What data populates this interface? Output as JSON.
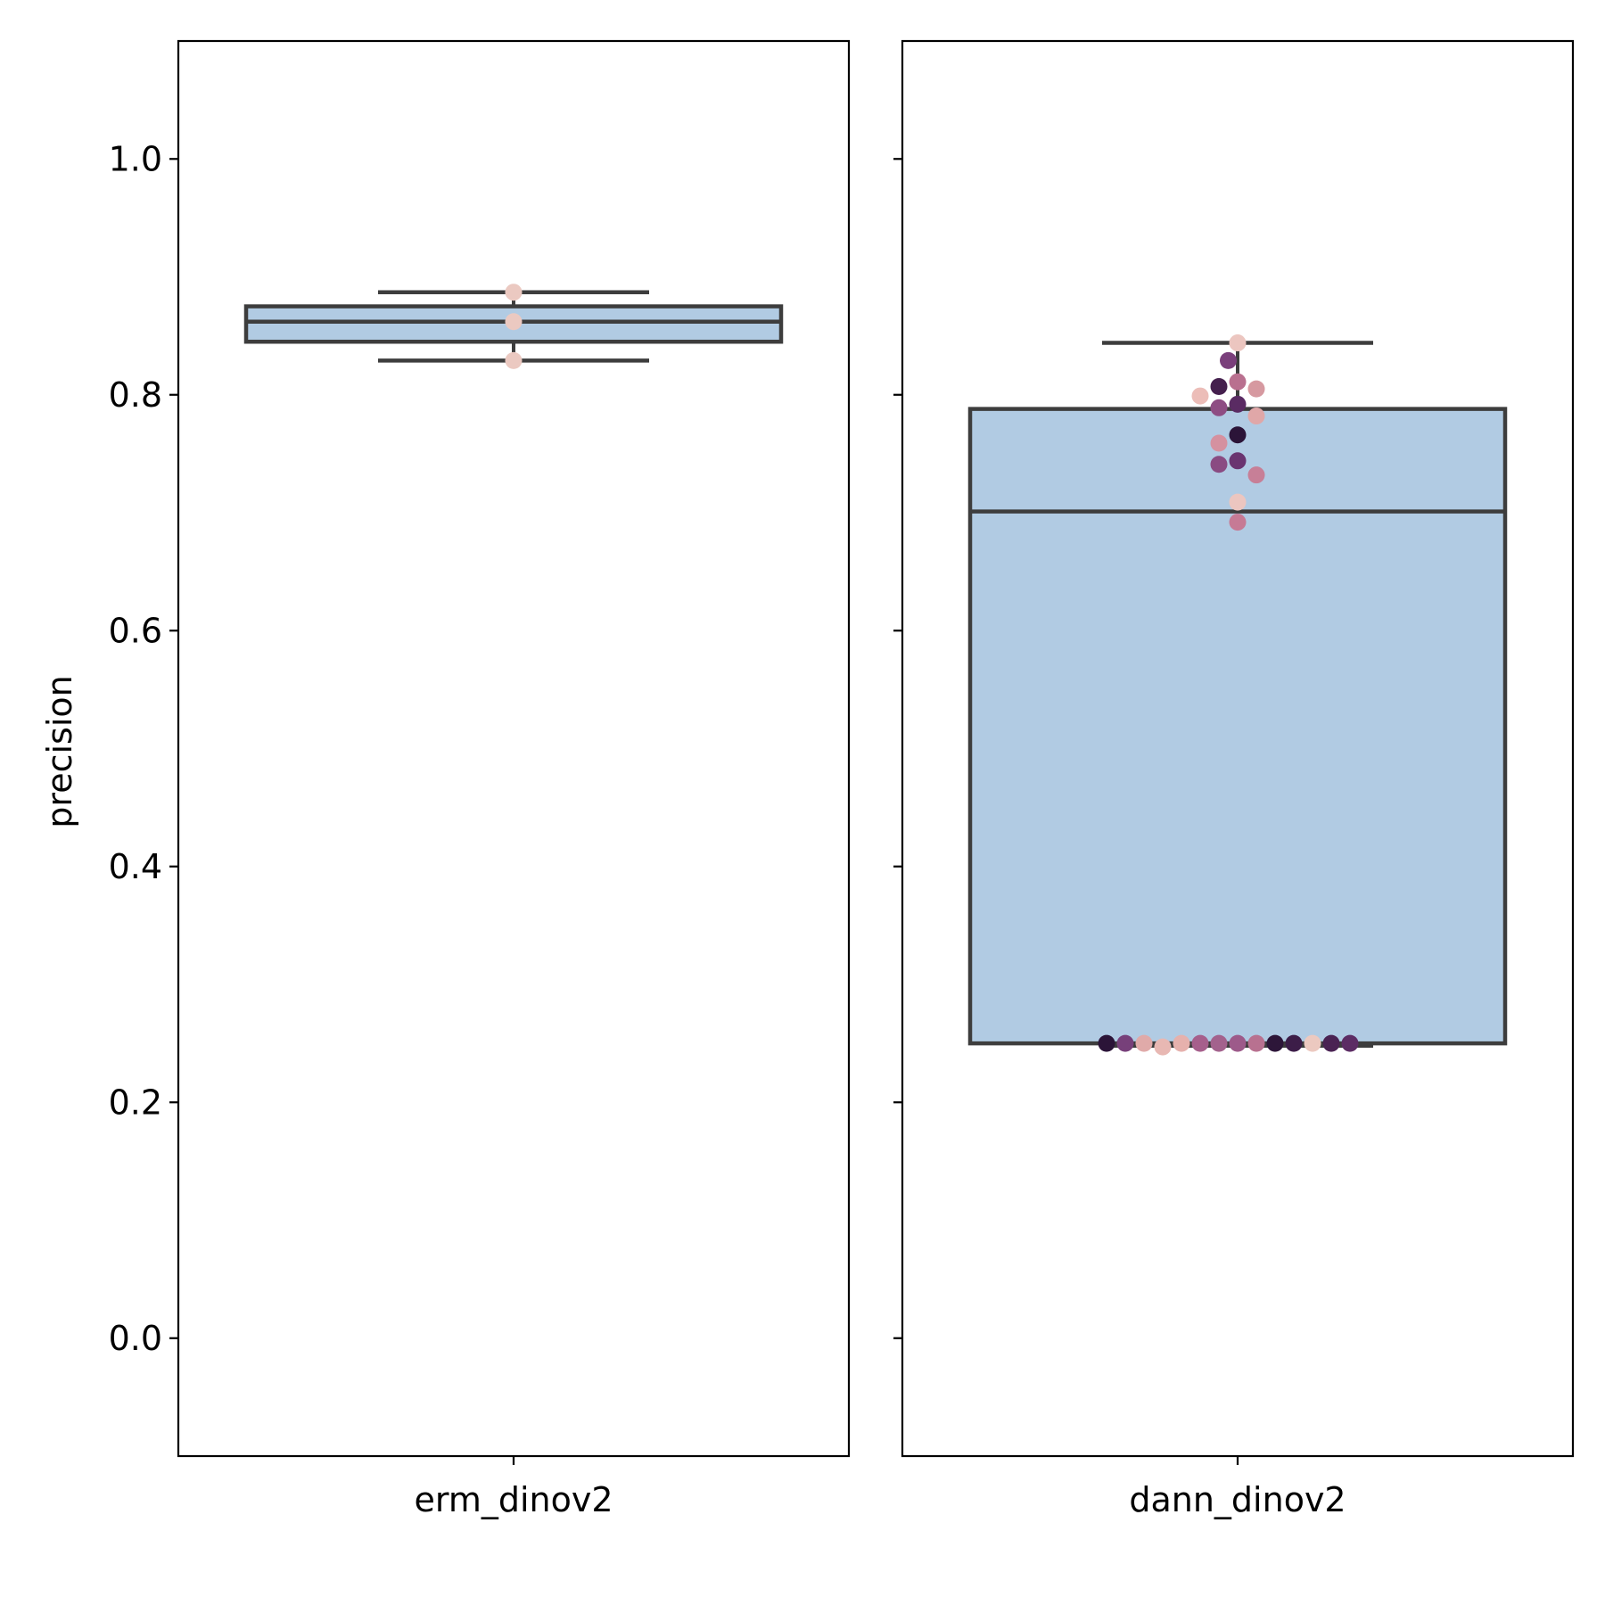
{
  "chart_data": {
    "type": "box",
    "ylabel": "precision",
    "ylim": [
      -0.1,
      1.1
    ],
    "yticks": [
      0.0,
      0.2,
      0.4,
      0.6,
      0.8,
      1.0
    ],
    "ytick_labels": [
      "0.0",
      "0.2",
      "0.4",
      "0.6",
      "0.8",
      "1.0"
    ],
    "sharey": true,
    "grid": false,
    "box_color": "#b1cbe3",
    "line_color": "#3d3d3d",
    "panels": [
      {
        "category": "erm_dinov2",
        "box": {
          "whisker_low": 0.829,
          "q1": 0.845,
          "median": 0.862,
          "q3": 0.875,
          "whisker_high": 0.887
        },
        "points": [
          {
            "y": 0.887,
            "color": "#ebc9c1"
          },
          {
            "y": 0.862,
            "color": "#ebc9c1"
          },
          {
            "y": 0.829,
            "color": "#ebc9c1"
          }
        ]
      },
      {
        "category": "dann_dinov2",
        "box": {
          "whisker_low": 0.248,
          "q1": 0.25,
          "median": 0.701,
          "q3": 0.788,
          "whisker_high": 0.844
        },
        "points": [
          {
            "y": 0.844,
            "color": "#ecc6c0"
          },
          {
            "y": 0.829,
            "color": "#7a3f7b"
          },
          {
            "y": 0.811,
            "color": "#b9708f"
          },
          {
            "y": 0.807,
            "color": "#45204e"
          },
          {
            "y": 0.805,
            "color": "#d699a0"
          },
          {
            "y": 0.799,
            "color": "#ecbdb8"
          },
          {
            "y": 0.792,
            "color": "#5a2b63"
          },
          {
            "y": 0.789,
            "color": "#8e4d83"
          },
          {
            "y": 0.782,
            "color": "#e0a7a8"
          },
          {
            "y": 0.766,
            "color": "#2b1438"
          },
          {
            "y": 0.759,
            "color": "#d591a0"
          },
          {
            "y": 0.744,
            "color": "#6a3470"
          },
          {
            "y": 0.741,
            "color": "#8a4b82"
          },
          {
            "y": 0.732,
            "color": "#c77f97"
          },
          {
            "y": 0.709,
            "color": "#ecc6c0"
          },
          {
            "y": 0.692,
            "color": "#c67a95"
          },
          {
            "y": 0.25,
            "color": "#9d5a8a"
          },
          {
            "y": 0.25,
            "color": "#a3628d"
          },
          {
            "y": 0.25,
            "color": "#b87190"
          },
          {
            "y": 0.25,
            "color": "#a65f8c"
          },
          {
            "y": 0.25,
            "color": "#2d1639"
          },
          {
            "y": 0.25,
            "color": "#e6b1ad"
          },
          {
            "y": 0.25,
            "color": "#3c1d48"
          },
          {
            "y": 0.247,
            "color": "#e8b8b3"
          },
          {
            "y": 0.25,
            "color": "#ecc9c0"
          },
          {
            "y": 0.25,
            "color": "#e0aaa9"
          },
          {
            "y": 0.25,
            "color": "#4a2253"
          },
          {
            "y": 0.25,
            "color": "#77407a"
          },
          {
            "y": 0.25,
            "color": "#5c2c64"
          },
          {
            "y": 0.25,
            "color": "#2b1438"
          }
        ]
      }
    ]
  }
}
